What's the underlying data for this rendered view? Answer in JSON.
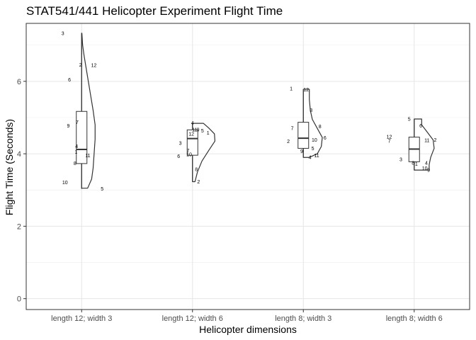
{
  "chart_data": {
    "type": "violin",
    "title": "STAT541/441 Helicopter Experiment Flight Time",
    "xlabel": "Helicopter dimensions",
    "ylabel": "Flight Time (Seconds)",
    "ylim": [
      -0.3,
      7.6
    ],
    "yticks": [
      0,
      2,
      4,
      6
    ],
    "grid": true,
    "categories": [
      "length 12; width 3",
      "length 12; width 6",
      "length 8; width 3",
      "length 8; width 6"
    ],
    "groups": [
      {
        "category": "length 12; width 3",
        "points": [
          {
            "label": "1",
            "value": 4.05,
            "jitter": -0.1
          },
          {
            "label": "2",
            "value": 6.46,
            "jitter": -0.02
          },
          {
            "label": "3",
            "value": 7.33,
            "jitter": -0.34
          },
          {
            "label": "4",
            "value": 4.21,
            "jitter": -0.09
          },
          {
            "label": "5",
            "value": 3.03,
            "jitter": 0.37
          },
          {
            "label": "6",
            "value": 6.05,
            "jitter": -0.22
          },
          {
            "label": "7",
            "value": 4.87,
            "jitter": -0.08
          },
          {
            "label": "8",
            "value": 3.74,
            "jitter": -0.12
          },
          {
            "label": "9",
            "value": 4.77,
            "jitter": -0.24
          },
          {
            "label": "10",
            "value": 3.21,
            "jitter": -0.3
          },
          {
            "label": "11",
            "value": 3.95,
            "jitter": 0.11
          },
          {
            "label": "12",
            "value": 6.45,
            "jitter": 0.22
          },
          {
            "label": "",
            "value": 3.8,
            "jitter": 0.29
          }
        ],
        "box": {
          "q1": 3.73,
          "median": 4.12,
          "q3": 5.17,
          "min": 3.03,
          "max": 7.33
        },
        "density": [
          [
            3.05,
            0.12
          ],
          [
            3.3,
            0.2
          ],
          [
            3.6,
            0.23
          ],
          [
            4.0,
            0.25
          ],
          [
            4.4,
            0.27
          ],
          [
            4.8,
            0.27
          ],
          [
            5.2,
            0.23
          ],
          [
            5.7,
            0.17
          ],
          [
            6.2,
            0.11
          ],
          [
            6.7,
            0.05
          ],
          [
            7.0,
            0.02
          ],
          [
            7.33,
            0.005
          ]
        ]
      },
      {
        "category": "length 12; width 6",
        "points": [
          {
            "label": "1",
            "value": 4.58,
            "jitter": 0.28
          },
          {
            "label": "2",
            "value": 3.23,
            "jitter": 0.11
          },
          {
            "label": "3",
            "value": 4.3,
            "jitter": -0.22
          },
          {
            "label": "4",
            "value": 4.85,
            "jitter": 0.0
          },
          {
            "label": "5",
            "value": 4.64,
            "jitter": 0.18
          },
          {
            "label": "6",
            "value": 3.93,
            "jitter": -0.25
          },
          {
            "label": "7",
            "value": 4.09,
            "jitter": -0.08
          },
          {
            "label": "8",
            "value": 3.57,
            "jitter": 0.07
          },
          {
            "label": "9",
            "value": 4.67,
            "jitter": 0.1
          },
          {
            "label": "10",
            "value": 3.98,
            "jitter": -0.06
          },
          {
            "label": "11",
            "value": 4.67,
            "jitter": 0.04
          },
          {
            "label": "12",
            "value": 4.55,
            "jitter": -0.02
          }
        ],
        "box": {
          "q1": 3.96,
          "median": 4.42,
          "q3": 4.66,
          "min": 3.23,
          "max": 4.84
        },
        "density": [
          [
            3.23,
            0.05
          ],
          [
            3.5,
            0.1
          ],
          [
            3.8,
            0.19
          ],
          [
            4.1,
            0.33
          ],
          [
            4.35,
            0.45
          ],
          [
            4.55,
            0.44
          ],
          [
            4.72,
            0.32
          ],
          [
            4.84,
            0.22
          ]
        ]
      },
      {
        "category": "length 8; width 3",
        "points": [
          {
            "label": "1",
            "value": 5.8,
            "jitter": -0.22
          },
          {
            "label": "2",
            "value": 4.34,
            "jitter": -0.27
          },
          {
            "label": "3",
            "value": 5.2,
            "jitter": 0.14
          },
          {
            "label": "4",
            "value": 3.9,
            "jitter": 0.12
          },
          {
            "label": "5",
            "value": 4.15,
            "jitter": 0.17
          },
          {
            "label": "6",
            "value": 4.44,
            "jitter": 0.39
          },
          {
            "label": "7",
            "value": 4.71,
            "jitter": -0.2
          },
          {
            "label": "8",
            "value": 4.75,
            "jitter": 0.3
          },
          {
            "label": "9",
            "value": 4.07,
            "jitter": -0.03
          },
          {
            "label": "10",
            "value": 4.38,
            "jitter": 0.2
          },
          {
            "label": "11",
            "value": 3.95,
            "jitter": 0.24
          },
          {
            "label": "12",
            "value": 5.77,
            "jitter": 0.05
          }
        ],
        "box": {
          "q1": 4.15,
          "median": 4.43,
          "q3": 4.87,
          "min": 3.9,
          "max": 5.78
        },
        "density": [
          [
            3.9,
            0.12
          ],
          [
            4.0,
            0.28
          ],
          [
            4.2,
            0.36
          ],
          [
            4.45,
            0.38
          ],
          [
            4.7,
            0.28
          ],
          [
            4.95,
            0.18
          ],
          [
            5.2,
            0.14
          ],
          [
            5.5,
            0.12
          ],
          [
            5.78,
            0.12
          ]
        ]
      },
      {
        "category": "length 8; width 6",
        "points": [
          {
            "label": "1",
            "value": 3.72,
            "jitter": 0.04
          },
          {
            "label": "2",
            "value": 4.38,
            "jitter": 0.38
          },
          {
            "label": "3",
            "value": 3.85,
            "jitter": -0.24
          },
          {
            "label": "4",
            "value": 3.75,
            "jitter": 0.22
          },
          {
            "label": "5",
            "value": 4.96,
            "jitter": -0.09
          },
          {
            "label": "6",
            "value": 4.77,
            "jitter": 0.12
          },
          {
            "label": "7",
            "value": 4.35,
            "jitter": -0.45
          },
          {
            "label": "8",
            "value": 3.75,
            "jitter": -0.02
          },
          {
            "label": "9",
            "value": 3.55,
            "jitter": 0.26
          },
          {
            "label": "10",
            "value": 3.6,
            "jitter": 0.19
          },
          {
            "label": "11",
            "value": 4.37,
            "jitter": 0.23
          },
          {
            "label": "12",
            "value": 4.47,
            "jitter": -0.45
          }
        ],
        "box": {
          "q1": 3.78,
          "median": 4.13,
          "q3": 4.46,
          "min": 3.55,
          "max": 4.96
        },
        "density": [
          [
            3.55,
            0.3
          ],
          [
            3.7,
            0.3
          ],
          [
            3.9,
            0.33
          ],
          [
            4.15,
            0.4
          ],
          [
            4.38,
            0.38
          ],
          [
            4.6,
            0.26
          ],
          [
            4.8,
            0.15
          ],
          [
            4.96,
            0.15
          ]
        ]
      }
    ]
  }
}
